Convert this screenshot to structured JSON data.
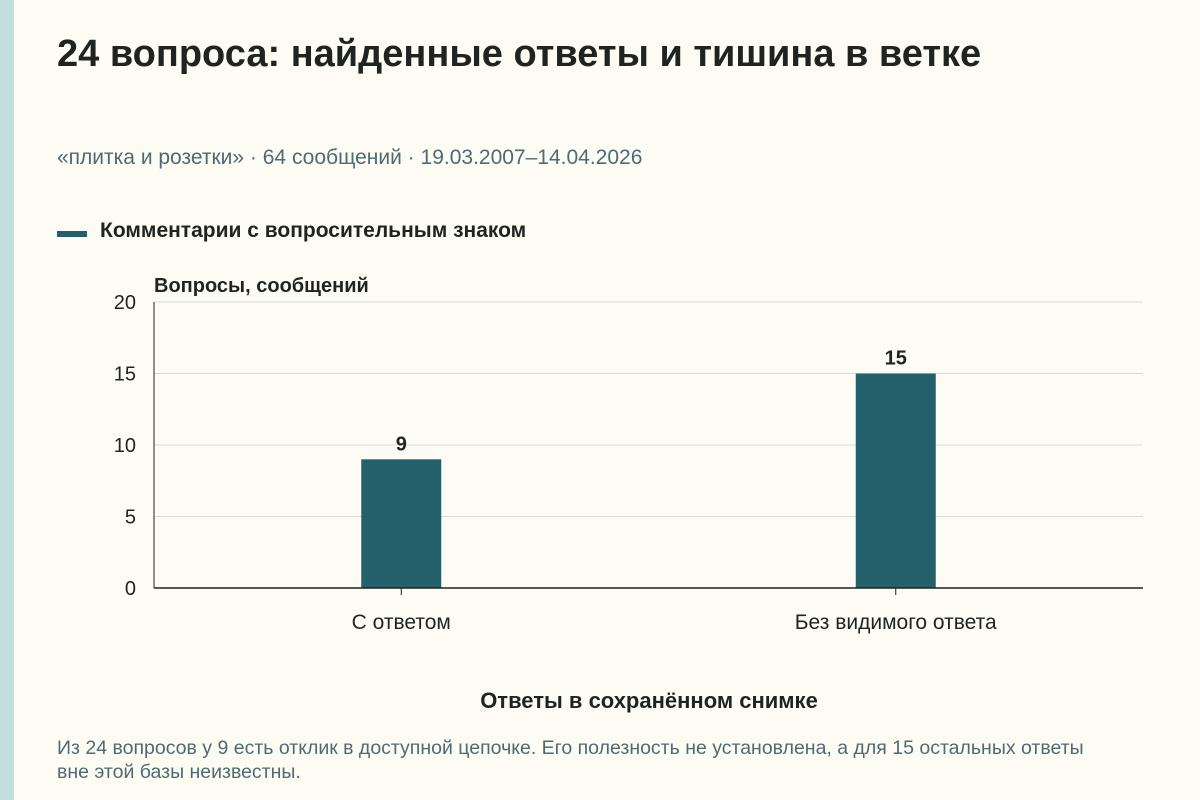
{
  "header": {
    "title": "24 вопроса: найденные ответы и тишина в ветке",
    "subtitle": "«плитка и розетки» · 64 сообщений · 19.03.2007–14.04.2026"
  },
  "colors": {
    "bar": "#25616b",
    "grid": "#d9dcd6",
    "axis": "#1f2421",
    "accent_strip": "#c2dfe0"
  },
  "chart_data": {
    "type": "bar",
    "categories": [
      "С ответом",
      "Без видимого ответа"
    ],
    "series": [
      {
        "name": "Комментарии с вопросительным знаком",
        "values": [
          9,
          15
        ]
      }
    ],
    "data_labels": [
      "9",
      "15"
    ],
    "ylabel": "Вопросы, сообщений",
    "xlabel": "Ответы в сохранённом снимке",
    "ylim": [
      0,
      20
    ],
    "yticks": [
      0,
      5,
      10,
      15,
      20
    ],
    "grid": true,
    "legend_position": "top-left"
  },
  "footer": {
    "note": "Из 24 вопросов у 9 есть отклик в доступной цепочке. Его полезность не установлена, а для 15 остальных ответы вне этой базы неизвестны."
  }
}
